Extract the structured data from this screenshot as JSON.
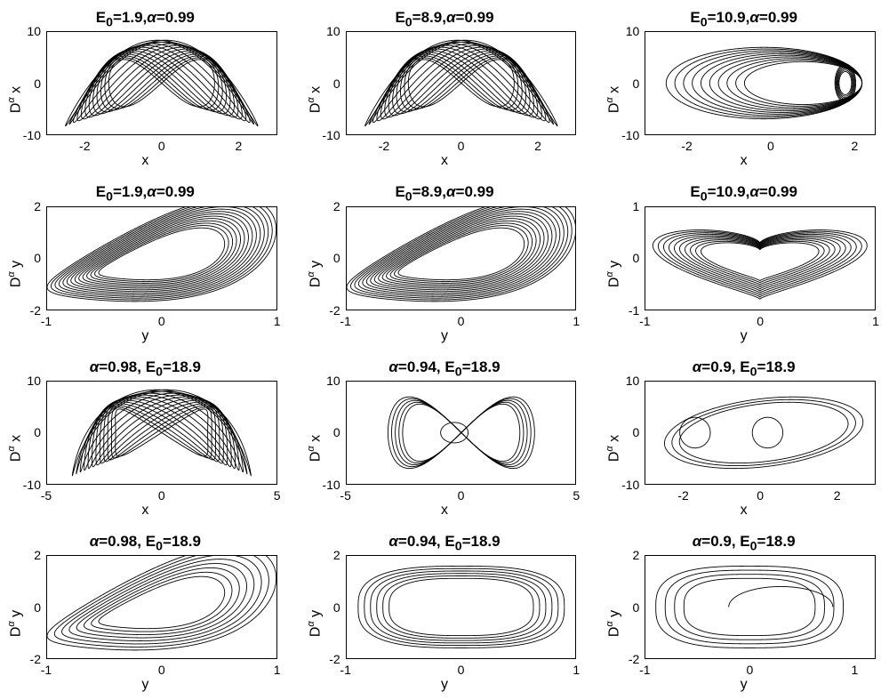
{
  "figure": {
    "background_color": "#ffffff",
    "line_color": "#000000",
    "axis_color": "#000000",
    "font_family": "Arial",
    "title_fontsize": 17,
    "title_fontweight": "bold",
    "label_fontsize": 16,
    "tick_fontsize": 14,
    "line_width": 0.9,
    "rows": 4,
    "cols": 3
  },
  "panels": [
    {
      "title_html": "E<sub>0</sub>=1.9,<i>α</i>=0.99",
      "E0": 1.9,
      "alpha": 0.99,
      "xlabel": "x",
      "ylabel_html": "D<sup>α</sup> x",
      "xlim": [
        -3,
        3
      ],
      "ylim": [
        -10,
        10
      ],
      "xticks": [
        -2,
        0,
        2
      ],
      "yticks": [
        -10,
        0,
        10
      ],
      "trace_type": "phase-double-lobe-dense"
    },
    {
      "title_html": "E<sub>0</sub>=8.9,<i>α</i>=0.99",
      "E0": 8.9,
      "alpha": 0.99,
      "xlabel": "x",
      "ylabel_html": "D<sup>α</sup> x",
      "xlim": [
        -3,
        3
      ],
      "ylim": [
        -10,
        10
      ],
      "xticks": [
        -2,
        0,
        2
      ],
      "yticks": [
        -10,
        0,
        10
      ],
      "trace_type": "phase-double-lobe-dense"
    },
    {
      "title_html": "E<sub>0</sub>=10.9,<i>α</i>=0.99",
      "E0": 10.9,
      "alpha": 0.99,
      "xlabel": "x",
      "ylabel_html": "D<sup>α</sup> x",
      "xlim": [
        -3,
        2.5
      ],
      "ylim": [
        -10,
        10
      ],
      "xticks": [
        -2,
        0,
        2
      ],
      "yticks": [
        -10,
        0,
        10
      ],
      "trace_type": "phase-single-lobe-right-dense"
    },
    {
      "title_html": "E<sub>0</sub>=1.9,<i>α</i>=0.99",
      "E0": 1.9,
      "alpha": 0.99,
      "xlabel": "y",
      "ylabel_html": "D<sup>α</sup> y",
      "xlim": [
        -1,
        1
      ],
      "ylim": [
        -2,
        2
      ],
      "xticks": [
        -1,
        0,
        1
      ],
      "yticks": [
        -2,
        0,
        2
      ],
      "trace_type": "phase-skew-oval-dense"
    },
    {
      "title_html": "E<sub>0</sub>=8.9,<i>α</i>=0.99",
      "E0": 8.9,
      "alpha": 0.99,
      "xlabel": "y",
      "ylabel_html": "D<sup>α</sup> y",
      "xlim": [
        -1,
        1
      ],
      "ylim": [
        -2,
        2
      ],
      "xticks": [
        -1,
        0,
        1
      ],
      "yticks": [
        -2,
        0,
        2
      ],
      "trace_type": "phase-skew-oval-dense"
    },
    {
      "title_html": "E<sub>0</sub>=10.9,<i>α</i>=0.99",
      "E0": 10.9,
      "alpha": 0.99,
      "xlabel": "y",
      "ylabel_html": "D<sup>α</sup> y",
      "xlim": [
        -1,
        1
      ],
      "ylim": [
        -1,
        1
      ],
      "xticks": [
        -1,
        0,
        1
      ],
      "yticks": [
        -1,
        0,
        1
      ],
      "trace_type": "phase-heart-dense"
    },
    {
      "title_html": "<i>α</i>=0.98, E<sub>0</sub>=18.9",
      "E0": 18.9,
      "alpha": 0.98,
      "xlabel": "x",
      "ylabel_html": "D<sup>α</sup> x",
      "xlim": [
        -5,
        5
      ],
      "ylim": [
        -10,
        10
      ],
      "xticks": [
        -5,
        0,
        5
      ],
      "yticks": [
        -10,
        0,
        10
      ],
      "trace_type": "phase-double-lobe-dense-b"
    },
    {
      "title_html": "<i>α</i>=0.94, E<sub>0</sub>=18.9",
      "E0": 18.9,
      "alpha": 0.94,
      "xlabel": "x",
      "ylabel_html": "D<sup>α</sup> x",
      "xlim": [
        -5,
        5
      ],
      "ylim": [
        -10,
        10
      ],
      "xticks": [
        -5,
        0,
        5
      ],
      "yticks": [
        -10,
        0,
        10
      ],
      "trace_type": "phase-figure8-thick"
    },
    {
      "title_html": "<i>α</i>=0.9, E<sub>0</sub>=18.9",
      "E0": 18.9,
      "alpha": 0.9,
      "xlabel": "x",
      "ylabel_html": "D<sup>α</sup> x",
      "xlim": [
        -3,
        3
      ],
      "ylim": [
        -10,
        10
      ],
      "xticks": [
        -2,
        0,
        2
      ],
      "yticks": [
        -10,
        0,
        10
      ],
      "trace_type": "phase-long-oval-loops"
    },
    {
      "title_html": "<i>α</i>=0.98, E<sub>0</sub>=18.9",
      "E0": 18.9,
      "alpha": 0.98,
      "xlabel": "y",
      "ylabel_html": "D<sup>α</sup> y",
      "xlim": [
        -1,
        1
      ],
      "ylim": [
        -2,
        2
      ],
      "xticks": [
        -1,
        0,
        1
      ],
      "yticks": [
        -2,
        0,
        2
      ],
      "trace_type": "phase-skew-oval-thick"
    },
    {
      "title_html": "<i>α</i>=0.94, E<sub>0</sub>=18.9",
      "E0": 18.9,
      "alpha": 0.94,
      "xlabel": "y",
      "ylabel_html": "D<sup>α</sup> y",
      "xlim": [
        -1,
        1
      ],
      "ylim": [
        -2,
        2
      ],
      "xticks": [
        -1,
        0,
        1
      ],
      "yticks": [
        -2,
        0,
        2
      ],
      "trace_type": "phase-diamond-oval"
    },
    {
      "title_html": "<i>α</i>=0.9, E<sub>0</sub>=18.9",
      "E0": 18.9,
      "alpha": 0.9,
      "xlabel": "y",
      "ylabel_html": "D<sup>α</sup> y",
      "xlim": [
        -1,
        1.2
      ],
      "ylim": [
        -2,
        2
      ],
      "xticks": [
        -1,
        0,
        1
      ],
      "yticks": [
        -2,
        0,
        2
      ],
      "trace_type": "phase-diamond-oval-sparse"
    }
  ]
}
